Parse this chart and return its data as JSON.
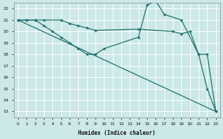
{
  "xlabel": "Humidex (Indice chaleur)",
  "bg_color": "#cce8e8",
  "grid_color": "#ffffff",
  "line_color": "#1a6e6a",
  "xlim": [
    -0.5,
    23.5
  ],
  "ylim": [
    12.5,
    22.5
  ],
  "xticks": [
    0,
    1,
    2,
    3,
    4,
    5,
    6,
    7,
    8,
    9,
    10,
    11,
    12,
    13,
    14,
    15,
    16,
    17,
    18,
    19,
    20,
    21,
    22,
    23
  ],
  "yticks": [
    13,
    14,
    15,
    16,
    17,
    18,
    19,
    20,
    21,
    22
  ],
  "line1_x": [
    0,
    1,
    2,
    3,
    4,
    5,
    6,
    7,
    8,
    9,
    10,
    14,
    15,
    16,
    17,
    19,
    21,
    22,
    23
  ],
  "line1_y": [
    21.0,
    21.0,
    21.0,
    20.5,
    20.0,
    19.5,
    19.0,
    18.5,
    18.0,
    18.0,
    18.5,
    19.5,
    22.3,
    22.7,
    21.5,
    21.0,
    18.0,
    15.0,
    13.0
  ],
  "line2_x": [
    0,
    1,
    2,
    3,
    5,
    6,
    7,
    8,
    9,
    14,
    18,
    19,
    20,
    21,
    22,
    23
  ],
  "line2_y": [
    21.0,
    21.0,
    21.0,
    21.0,
    21.0,
    20.7,
    20.5,
    20.3,
    20.1,
    20.2,
    20.0,
    19.8,
    20.0,
    18.0,
    18.0,
    13.0
  ],
  "line3_x": [
    0,
    23
  ],
  "line3_y": [
    21.0,
    13.0
  ]
}
